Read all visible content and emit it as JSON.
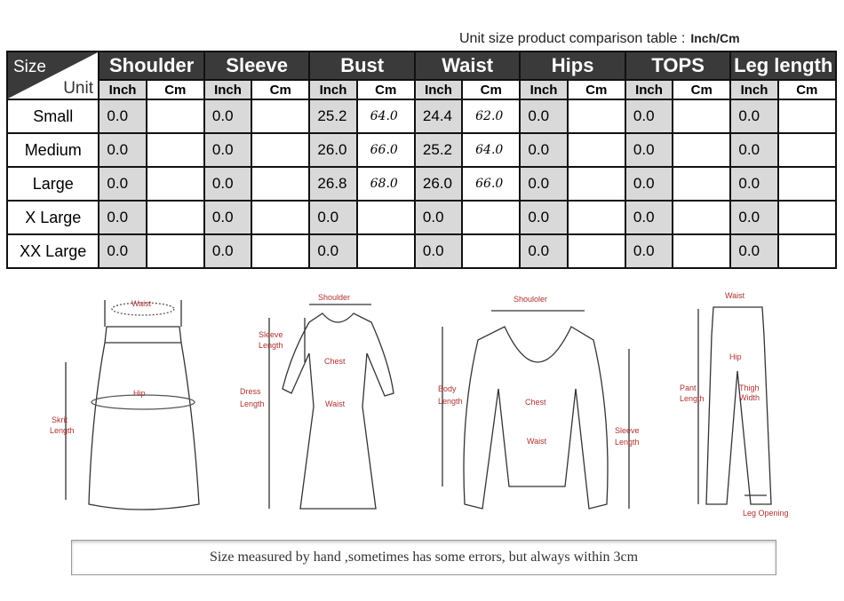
{
  "caption": {
    "text": "Unit size product comparison table :",
    "unit": "Inch/Cm"
  },
  "table": {
    "corner": {
      "size": "Size",
      "unit": "Unit"
    },
    "groups": [
      "Shoulder",
      "Sleeve",
      "Bust",
      "Waist",
      "Hips",
      "TOPS",
      "Leg length"
    ],
    "sub": {
      "inch": "Inch",
      "cm": "Cm"
    },
    "rows": [
      {
        "size": "Small",
        "vals": [
          [
            "0.0",
            ""
          ],
          [
            "0.0",
            ""
          ],
          [
            "25.2",
            "64.0"
          ],
          [
            "24.4",
            "62.0"
          ],
          [
            "0.0",
            ""
          ],
          [
            "0.0",
            ""
          ],
          [
            "0.0",
            ""
          ]
        ]
      },
      {
        "size": "Medium",
        "vals": [
          [
            "0.0",
            ""
          ],
          [
            "0.0",
            ""
          ],
          [
            "26.0",
            "66.0"
          ],
          [
            "25.2",
            "64.0"
          ],
          [
            "0.0",
            ""
          ],
          [
            "0.0",
            ""
          ],
          [
            "0.0",
            ""
          ]
        ]
      },
      {
        "size": "Large",
        "vals": [
          [
            "0.0",
            ""
          ],
          [
            "0.0",
            ""
          ],
          [
            "26.8",
            "68.0"
          ],
          [
            "26.0",
            "66.0"
          ],
          [
            "0.0",
            ""
          ],
          [
            "0.0",
            ""
          ],
          [
            "0.0",
            ""
          ]
        ]
      },
      {
        "size": "X Large",
        "vals": [
          [
            "0.0",
            ""
          ],
          [
            "0.0",
            ""
          ],
          [
            "0.0",
            ""
          ],
          [
            "0.0",
            ""
          ],
          [
            "0.0",
            ""
          ],
          [
            "0.0",
            ""
          ],
          [
            "0.0",
            ""
          ]
        ]
      },
      {
        "size": "XX Large",
        "vals": [
          [
            "0.0",
            ""
          ],
          [
            "0.0",
            ""
          ],
          [
            "0.0",
            ""
          ],
          [
            "0.0",
            ""
          ],
          [
            "0.0",
            ""
          ],
          [
            "0.0",
            ""
          ],
          [
            "0.0",
            ""
          ]
        ]
      }
    ]
  },
  "illustrations": {
    "skirt": {
      "waist": "Waist",
      "hip": "Hip",
      "length1": "Skrit",
      "length2": "Length"
    },
    "dress": {
      "shoulder": "Shoulder",
      "sleeve1": "Sleeve",
      "sleeve2": "Length",
      "chest": "Chest",
      "dress1": "Dress",
      "dress2": "Length",
      "waist": "Waist"
    },
    "top": {
      "shoulder": "Shouloler",
      "body1": "Body",
      "body2": "Length",
      "chest": "Chest",
      "waist": "Waist",
      "sleeve1": "Sleeve",
      "sleeve2": "Length"
    },
    "pants": {
      "waist": "Waist",
      "hip": "Hip",
      "pant1": "Pant",
      "pant2": "Length",
      "thigh1": "Thigh",
      "thigh2": "Width",
      "leg": "Leg Opening"
    }
  },
  "note": "Size measured by hand ,sometimes has some errors, but always within 3cm"
}
